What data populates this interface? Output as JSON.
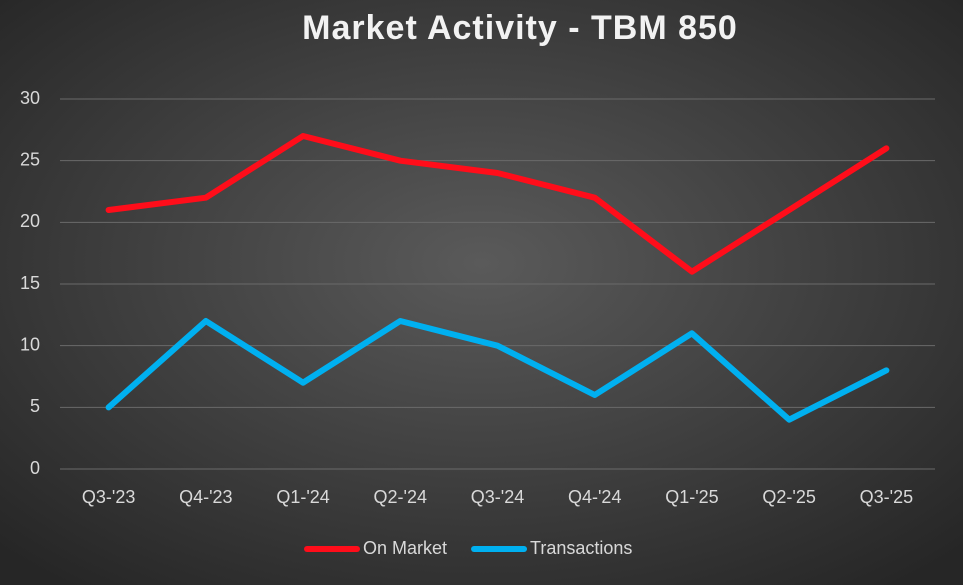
{
  "chart_data": {
    "type": "line",
    "title": "Market Activity - TBM 850",
    "categories": [
      "Q3-'23",
      "Q4-'23",
      "Q1-'24",
      "Q2-'24",
      "Q3-'24",
      "Q4-'24",
      "Q1-'25",
      "Q2-'25",
      "Q3-'25"
    ],
    "series": [
      {
        "name": "On Market",
        "color": "#ff0d1a",
        "values": [
          21,
          22,
          27,
          25,
          24,
          22,
          16,
          21,
          26
        ]
      },
      {
        "name": "Transactions",
        "color": "#00b0f0",
        "values": [
          5,
          12,
          7,
          12,
          10,
          6,
          11,
          4,
          8
        ]
      }
    ],
    "ylim": [
      0,
      30
    ],
    "yticks": [
      0,
      5,
      10,
      15,
      20,
      25,
      30
    ],
    "grid": true,
    "legend": "bottom"
  }
}
